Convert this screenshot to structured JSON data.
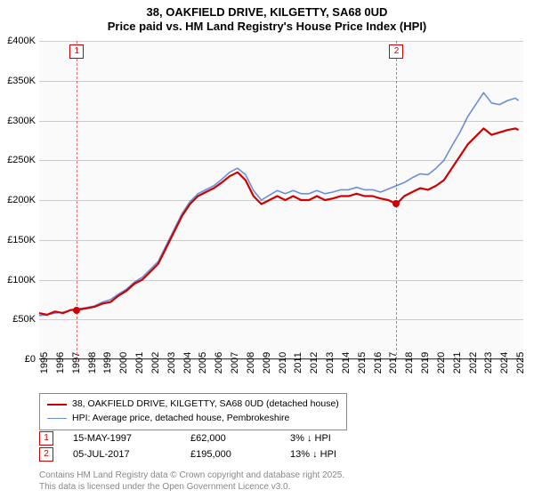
{
  "title": {
    "line1": "38, OAKFIELD DRIVE, KILGETTY, SA68 0UD",
    "line2": "Price paid vs. HM Land Registry's House Price Index (HPI)"
  },
  "chart": {
    "type": "line",
    "background_color": "#fafafa",
    "grid_color": "#444444",
    "grid_opacity": 0.25,
    "axis_fontsize": 11,
    "xlim": [
      1995,
      2025.5
    ],
    "ylim": [
      0,
      400000
    ],
    "ytick_step": 50000,
    "yticks": [
      {
        "v": 0,
        "label": "£0"
      },
      {
        "v": 50000,
        "label": "£50K"
      },
      {
        "v": 100000,
        "label": "£100K"
      },
      {
        "v": 150000,
        "label": "£150K"
      },
      {
        "v": 200000,
        "label": "£200K"
      },
      {
        "v": 250000,
        "label": "£250K"
      },
      {
        "v": 300000,
        "label": "£300K"
      },
      {
        "v": 350000,
        "label": "£350K"
      },
      {
        "v": 400000,
        "label": "£400K"
      }
    ],
    "xticks": [
      1995,
      1996,
      1997,
      1998,
      1999,
      2000,
      2001,
      2002,
      2003,
      2004,
      2005,
      2006,
      2007,
      2008,
      2009,
      2010,
      2011,
      2012,
      2013,
      2014,
      2015,
      2016,
      2017,
      2018,
      2019,
      2020,
      2021,
      2022,
      2023,
      2024,
      2025
    ],
    "series": [
      {
        "id": "property",
        "label": "38, OAKFIELD DRIVE, KILGETTY, SA68 0UD (detached house)",
        "color": "#d00000",
        "line_width": 2.2,
        "data": [
          [
            1995,
            58000
          ],
          [
            1995.5,
            56000
          ],
          [
            1996,
            60000
          ],
          [
            1996.5,
            58000
          ],
          [
            1997,
            62000
          ],
          [
            1997.37,
            62000
          ],
          [
            1998,
            64000
          ],
          [
            1998.5,
            66000
          ],
          [
            1999,
            70000
          ],
          [
            1999.5,
            72000
          ],
          [
            2000,
            80000
          ],
          [
            2000.5,
            86000
          ],
          [
            2001,
            95000
          ],
          [
            2001.5,
            100000
          ],
          [
            2002,
            110000
          ],
          [
            2002.5,
            120000
          ],
          [
            2003,
            140000
          ],
          [
            2003.5,
            160000
          ],
          [
            2004,
            180000
          ],
          [
            2004.5,
            195000
          ],
          [
            2005,
            205000
          ],
          [
            2005.5,
            210000
          ],
          [
            2006,
            215000
          ],
          [
            2006.5,
            222000
          ],
          [
            2007,
            230000
          ],
          [
            2007.5,
            235000
          ],
          [
            2008,
            225000
          ],
          [
            2008.5,
            205000
          ],
          [
            2009,
            195000
          ],
          [
            2009.5,
            200000
          ],
          [
            2010,
            205000
          ],
          [
            2010.5,
            200000
          ],
          [
            2011,
            205000
          ],
          [
            2011.5,
            200000
          ],
          [
            2012,
            200000
          ],
          [
            2012.5,
            205000
          ],
          [
            2013,
            200000
          ],
          [
            2013.5,
            202000
          ],
          [
            2014,
            205000
          ],
          [
            2014.5,
            205000
          ],
          [
            2015,
            208000
          ],
          [
            2015.5,
            205000
          ],
          [
            2016,
            205000
          ],
          [
            2016.5,
            202000
          ],
          [
            2017,
            200000
          ],
          [
            2017.51,
            195000
          ],
          [
            2018,
            205000
          ],
          [
            2018.5,
            210000
          ],
          [
            2019,
            215000
          ],
          [
            2019.5,
            213000
          ],
          [
            2020,
            218000
          ],
          [
            2020.5,
            225000
          ],
          [
            2021,
            240000
          ],
          [
            2021.5,
            255000
          ],
          [
            2022,
            270000
          ],
          [
            2022.5,
            280000
          ],
          [
            2023,
            290000
          ],
          [
            2023.5,
            282000
          ],
          [
            2024,
            285000
          ],
          [
            2024.5,
            288000
          ],
          [
            2025,
            290000
          ],
          [
            2025.2,
            288000
          ]
        ]
      },
      {
        "id": "hpi",
        "label": "HPI: Average price, detached house, Pembrokeshire",
        "color": "#6a8fd8",
        "line_width": 1.6,
        "data": [
          [
            1995,
            55000
          ],
          [
            1995.5,
            56000
          ],
          [
            1996,
            58000
          ],
          [
            1996.5,
            59000
          ],
          [
            1997,
            62000
          ],
          [
            1998,
            65000
          ],
          [
            1998.5,
            67000
          ],
          [
            1999,
            72000
          ],
          [
            1999.5,
            75000
          ],
          [
            2000,
            82000
          ],
          [
            2000.5,
            88000
          ],
          [
            2001,
            97000
          ],
          [
            2001.5,
            103000
          ],
          [
            2002,
            113000
          ],
          [
            2002.5,
            123000
          ],
          [
            2003,
            143000
          ],
          [
            2003.5,
            163000
          ],
          [
            2004,
            183000
          ],
          [
            2004.5,
            198000
          ],
          [
            2005,
            208000
          ],
          [
            2005.5,
            213000
          ],
          [
            2006,
            218000
          ],
          [
            2006.5,
            226000
          ],
          [
            2007,
            235000
          ],
          [
            2007.5,
            240000
          ],
          [
            2008,
            232000
          ],
          [
            2008.5,
            212000
          ],
          [
            2009,
            200000
          ],
          [
            2009.5,
            206000
          ],
          [
            2010,
            212000
          ],
          [
            2010.5,
            208000
          ],
          [
            2011,
            212000
          ],
          [
            2011.5,
            208000
          ],
          [
            2012,
            208000
          ],
          [
            2012.5,
            212000
          ],
          [
            2013,
            208000
          ],
          [
            2013.5,
            210000
          ],
          [
            2014,
            213000
          ],
          [
            2014.5,
            213000
          ],
          [
            2015,
            216000
          ],
          [
            2015.5,
            213000
          ],
          [
            2016,
            213000
          ],
          [
            2016.5,
            210000
          ],
          [
            2017,
            214000
          ],
          [
            2017.5,
            218000
          ],
          [
            2018,
            222000
          ],
          [
            2018.5,
            228000
          ],
          [
            2019,
            233000
          ],
          [
            2019.5,
            232000
          ],
          [
            2020,
            240000
          ],
          [
            2020.5,
            250000
          ],
          [
            2021,
            268000
          ],
          [
            2021.5,
            285000
          ],
          [
            2022,
            305000
          ],
          [
            2022.5,
            320000
          ],
          [
            2023,
            335000
          ],
          [
            2023.5,
            322000
          ],
          [
            2024,
            320000
          ],
          [
            2024.5,
            325000
          ],
          [
            2025,
            328000
          ],
          [
            2025.2,
            325000
          ]
        ]
      }
    ],
    "sale_markers": [
      {
        "n": "1",
        "x": 1997.37,
        "y": 62000
      },
      {
        "n": "2",
        "x": 2017.51,
        "y": 195000
      }
    ]
  },
  "legend": {
    "border_color": "#888888",
    "fontsize": 10.5,
    "items": [
      {
        "color": "#d00000",
        "thick": 2.2,
        "label": "38, OAKFIELD DRIVE, KILGETTY, SA68 0UD (detached house)"
      },
      {
        "color": "#6a8fd8",
        "thick": 1.6,
        "label": "HPI: Average price, detached house, Pembrokeshire"
      }
    ]
  },
  "sales": [
    {
      "n": "1",
      "date": "15-MAY-1997",
      "price": "£62,000",
      "delta": "3% ↓ HPI"
    },
    {
      "n": "2",
      "date": "05-JUL-2017",
      "price": "£195,000",
      "delta": "13% ↓ HPI"
    }
  ],
  "footer": {
    "line1": "Contains HM Land Registry data © Crown copyright and database right 2025.",
    "line2": "This data is licensed under the Open Government Licence v3.0."
  }
}
